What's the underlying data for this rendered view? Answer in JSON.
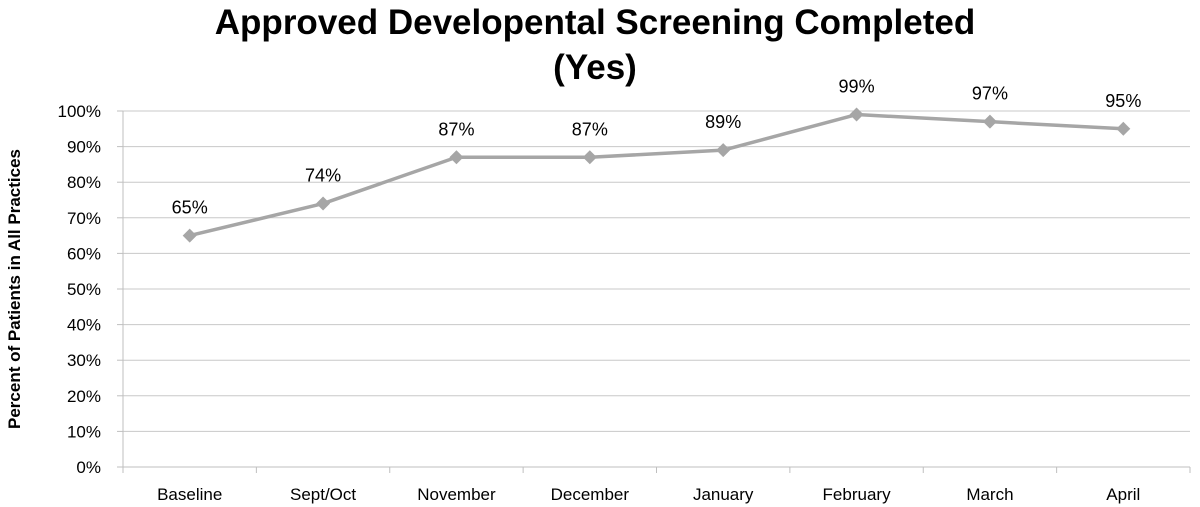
{
  "chart_data": {
    "type": "line",
    "title_line1": "Approved Developental Screening Completed",
    "title_line2": "(Yes)",
    "xlabel": "",
    "ylabel": "Percent of Patients in All Practices",
    "categories": [
      "Baseline",
      "Sept/Oct",
      "November",
      "December",
      "January",
      "February",
      "March",
      "April"
    ],
    "series": [
      {
        "values": [
          65,
          74,
          87,
          87,
          89,
          99,
          97,
          95
        ],
        "data_labels": [
          "65%",
          "74%",
          "87%",
          "87%",
          "89%",
          "99%",
          "97%",
          "95%"
        ]
      }
    ],
    "ylim": [
      0,
      100
    ],
    "yticks": [
      0,
      10,
      20,
      30,
      40,
      50,
      60,
      70,
      80,
      90,
      100
    ],
    "ytick_labels": [
      "0%",
      "10%",
      "20%",
      "30%",
      "40%",
      "50%",
      "60%",
      "70%",
      "80%",
      "90%",
      "100%"
    ],
    "grid": true,
    "legend": "none",
    "colors": {
      "line": "#a6a6a6",
      "marker": "#a6a6a6",
      "grid": "#c8c8c8",
      "axis": "#bfbfbf"
    }
  }
}
